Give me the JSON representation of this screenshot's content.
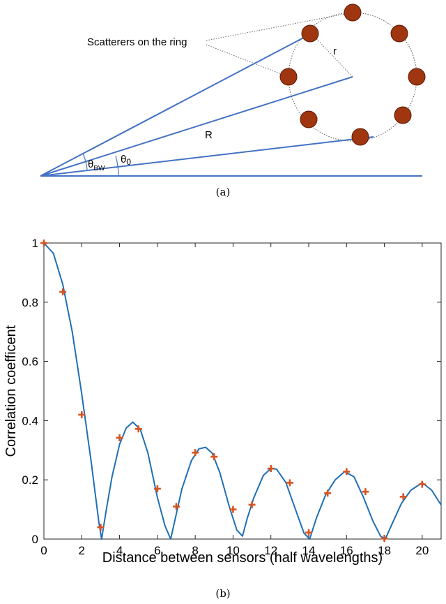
{
  "diagram": {
    "scatterer_label": "Scatterers on the ring",
    "radius_label": "r",
    "distance_label": "R",
    "beamwidth_symbol": "θ",
    "beamwidth_subscript": "BW",
    "angle_symbol": "θ",
    "angle_subscript": "0",
    "caption": "(a)",
    "colors": {
      "lines": "#4472c4",
      "scatterers": "#a0360f",
      "scatterer_edge": "#5a1a05"
    }
  },
  "chart_data": {
    "type": "line",
    "caption": "(b)",
    "xlabel": "Distance between sensors (half wavelengths)",
    "ylabel": "Correlation coefficent",
    "xlim": [
      0,
      21
    ],
    "ylim": [
      0,
      1
    ],
    "xticks": [
      0,
      2,
      4,
      6,
      8,
      10,
      12,
      14,
      16,
      18,
      20
    ],
    "yticks": [
      0,
      0.2,
      0.4,
      0.6,
      0.8,
      1
    ],
    "ytick_labels": [
      "0",
      "0.2",
      "0.4",
      "0.6",
      "0.8",
      "1"
    ],
    "grid": false,
    "series": [
      {
        "kind": "line",
        "color": "#1f6fb5",
        "x": [
          0,
          0.5,
          1,
          1.5,
          2,
          2.5,
          2.9,
          3.05,
          3.3,
          3.6,
          4,
          4.35,
          4.7,
          5.1,
          5.5,
          6,
          6.4,
          6.7,
          6.95,
          7.3,
          7.8,
          8.2,
          8.55,
          8.9,
          9.3,
          9.8,
          10.2,
          10.5,
          10.75,
          11.1,
          11.6,
          12,
          12.3,
          12.8,
          13.3,
          13.75,
          14.05,
          14.4,
          14.9,
          15.4,
          15.9,
          16.4,
          16.9,
          17.4,
          17.8,
          18.05,
          18.4,
          18.9,
          19.4,
          20,
          20.5,
          21
        ],
        "y": [
          1,
          0.965,
          0.86,
          0.7,
          0.49,
          0.26,
          0.06,
          0.0,
          0.1,
          0.21,
          0.32,
          0.375,
          0.395,
          0.37,
          0.29,
          0.14,
          0.045,
          0.0,
          0.07,
          0.17,
          0.265,
          0.305,
          0.31,
          0.29,
          0.225,
          0.11,
          0.03,
          0.01,
          0.07,
          0.14,
          0.215,
          0.238,
          0.236,
          0.19,
          0.1,
          0.02,
          0.0,
          0.07,
          0.15,
          0.2,
          0.228,
          0.21,
          0.14,
          0.06,
          0.01,
          0.0,
          0.05,
          0.12,
          0.165,
          0.19,
          0.165,
          0.115
        ]
      },
      {
        "kind": "markers",
        "marker": "plus",
        "color": "#d9531e",
        "x": [
          0,
          1,
          2,
          3,
          4,
          5,
          6,
          7,
          8,
          9,
          10,
          11,
          12,
          13,
          14,
          15,
          16,
          17,
          18,
          19,
          20
        ],
        "y": [
          1,
          0.835,
          0.42,
          0.04,
          0.342,
          0.372,
          0.17,
          0.11,
          0.292,
          0.278,
          0.1,
          0.116,
          0.238,
          0.19,
          0.022,
          0.155,
          0.228,
          0.16,
          0.002,
          0.143,
          0.185
        ]
      }
    ]
  }
}
